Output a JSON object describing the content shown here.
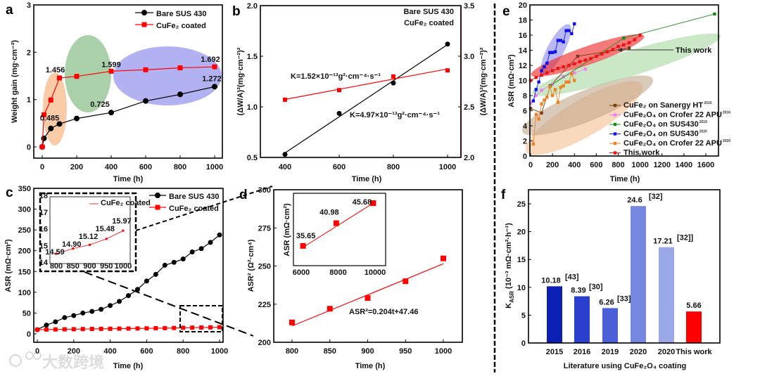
{
  "chart_data": [
    {
      "panel": "a",
      "type": "line",
      "xlabel": "Time (h)",
      "ylabel": "Weight gain (mg·cm⁻²)",
      "xlim": [
        0,
        1000
      ],
      "ylim": [
        0,
        3
      ],
      "xticks": [
        "0",
        "200",
        "400",
        "600",
        "800",
        "1000"
      ],
      "yticks": [
        "0",
        "1",
        "2",
        "3"
      ],
      "legend": "top-right",
      "series": [
        {
          "name": "Bare SUS 430",
          "color": "#000000",
          "marker": "circle",
          "x": [
            0,
            10,
            50,
            100,
            200,
            400,
            600,
            800,
            1000
          ],
          "y": [
            0,
            0.18,
            0.39,
            0.485,
            0.6,
            0.725,
            0.97,
            1.11,
            1.272
          ]
        },
        {
          "name": "CuFe₂ coated",
          "color": "#ff0000",
          "marker": "square",
          "x": [
            0,
            10,
            50,
            100,
            200,
            400,
            600,
            800,
            1000
          ],
          "y": [
            0,
            0.68,
            0.99,
            1.456,
            1.49,
            1.599,
            1.63,
            1.67,
            1.692
          ]
        }
      ],
      "annotations": [
        {
          "text": "0.485",
          "x": 100,
          "y": 0.485,
          "color": "#333333"
        },
        {
          "text": "0.725",
          "x": 400,
          "y": 0.725,
          "color": "#333333"
        },
        {
          "text": "1.272",
          "x": 1000,
          "y": 1.272,
          "color": "#222266"
        },
        {
          "text": "1.456",
          "x": 100,
          "y": 1.456,
          "color": "#ff0000"
        },
        {
          "text": "1.599",
          "x": 400,
          "y": 1.599,
          "color": "#ff0000"
        },
        {
          "text": "1.692",
          "x": 1000,
          "y": 1.692,
          "color": "#ff0000"
        }
      ]
    },
    {
      "panel": "b",
      "type": "scatter",
      "xlabel": "Time (h)",
      "ylabel": "(ΔW/A)²(mg·cm⁻²)²",
      "ylabel_right": "(ΔW/A)²(mg·cm⁻²)²",
      "xlim": [
        400,
        1000
      ],
      "ylim": [
        0.5,
        2.0
      ],
      "ylim_right": [
        2.0,
        3.5
      ],
      "xticks": [
        "400",
        "600",
        "800",
        "1000"
      ],
      "yticks": [
        "0.5",
        "1.0",
        "1.5",
        "2.0"
      ],
      "yticks_right": [
        "2.0",
        "2.5",
        "3.0",
        "3.5"
      ],
      "series": [
        {
          "name": "Bare SUS 430",
          "color": "#000000",
          "axis": "left",
          "x": [
            400,
            600,
            800,
            1000
          ],
          "y": [
            0.53,
            0.935,
            1.235,
            1.62
          ],
          "fit_label": "K=4.97×10⁻¹³g²·cm⁻⁴·s⁻¹"
        },
        {
          "name": "CuFe₂ coated",
          "color": "#ff0000",
          "axis": "right",
          "x": [
            400,
            600,
            800,
            1000
          ],
          "y": [
            2.57,
            2.665,
            2.8,
            2.86
          ],
          "fit_label": "K=1.52×10⁻¹³g²·cm⁻⁴·s⁻¹"
        }
      ]
    },
    {
      "panel": "c",
      "type": "line",
      "xlabel": "Time (h)",
      "ylabel": "ASR (mΩ·cm²)",
      "xlim": [
        0,
        1000
      ],
      "ylim": [
        0,
        350
      ],
      "xticks": [
        "0",
        "200",
        "400",
        "600",
        "800",
        "1000"
      ],
      "yticks": [
        "0",
        "50",
        "100",
        "150",
        "200",
        "250",
        "300",
        "350"
      ],
      "legend": "top-right",
      "series": [
        {
          "name": "Bare SUS 430",
          "color": "#000000",
          "marker": "circle",
          "x": [
            0,
            50,
            100,
            150,
            200,
            250,
            300,
            350,
            400,
            450,
            500,
            550,
            600,
            650,
            700,
            750,
            800,
            850,
            900,
            950,
            1000
          ],
          "y": [
            10,
            21,
            29,
            39,
            44,
            50,
            54,
            59,
            68,
            78,
            92,
            107,
            127,
            143,
            165,
            172,
            180,
            197,
            205,
            220,
            238
          ]
        },
        {
          "name": "CuFe₂ coated",
          "color": "#ff0000",
          "marker": "square",
          "x": [
            0,
            50,
            100,
            150,
            200,
            250,
            300,
            350,
            400,
            450,
            500,
            550,
            600,
            650,
            700,
            750,
            800,
            850,
            900,
            950,
            1000
          ],
          "y": [
            10,
            10.3,
            10.6,
            10.9,
            11.2,
            11.5,
            11.8,
            12.0,
            12.2,
            12.5,
            12.7,
            12.9,
            13.2,
            13.5,
            13.8,
            14.1,
            14.59,
            14.9,
            15.12,
            15.48,
            15.97
          ]
        }
      ],
      "inset": {
        "legend": "CuFe₂ coated",
        "xlim": [
          800,
          1000
        ],
        "ylim": [
          14,
          18
        ],
        "xticks": [
          "800",
          "850",
          "900",
          "950",
          "1000"
        ],
        "yticks": [
          "14",
          "15",
          "16",
          "17",
          "18"
        ],
        "x": [
          800,
          850,
          900,
          950,
          1000
        ],
        "y": [
          14.59,
          14.9,
          15.12,
          15.48,
          15.97
        ],
        "labels": [
          "14.59",
          "14.90",
          "15.12",
          "15.48",
          "15.97"
        ]
      }
    },
    {
      "panel": "d",
      "type": "scatter",
      "xlabel": "Time (h)",
      "ylabel": "ASR² (Ω²·cm⁴)",
      "xlim": [
        800,
        1000
      ],
      "ylim": [
        200,
        300
      ],
      "xticks": [
        "800",
        "850",
        "900",
        "950",
        "1000"
      ],
      "yticks": [
        "200",
        "225",
        "250",
        "275",
        "300"
      ],
      "x": [
        800,
        850,
        900,
        950,
        1000
      ],
      "y": [
        213,
        222,
        229,
        240,
        255
      ],
      "fit": {
        "slope": 0.204,
        "intercept": 47.46,
        "label": "ASR²=0.204t+47.46"
      },
      "inset": {
        "ylabel": "ASR (mΩ·cm²)",
        "xlim": [
          6000,
          10000
        ],
        "ylim": [
          32,
          48
        ],
        "xticks": [
          "6000",
          "8000",
          "10000"
        ],
        "x": [
          6100,
          7900,
          9900
        ],
        "y": [
          35.65,
          40.98,
          45.68
        ],
        "labels": [
          "35.65",
          "40.98",
          "45.68"
        ]
      }
    },
    {
      "panel": "e",
      "type": "line",
      "xlabel": "Time (h)",
      "ylabel": "ASR (mΩ·cm²)",
      "xlim": [
        0,
        1700
      ],
      "ylim": [
        0,
        20
      ],
      "xticks": [
        "0",
        "200",
        "400",
        "600",
        "800",
        "1000",
        "1200",
        "1400",
        "1600"
      ],
      "yticks": [
        "0",
        "2",
        "4",
        "6",
        "8",
        "10",
        "12",
        "14",
        "16",
        "18",
        "20"
      ],
      "legend": "bottom-right",
      "annotation": "This work",
      "series": [
        {
          "name": "CuFe₂ on Sanergy HT",
          "ref": "2015",
          "color": "#7a3b12",
          "x": [
            0,
            100,
            180,
            430,
            900
          ],
          "y": [
            6.3,
            5.7,
            9.3,
            13.2,
            14.3
          ]
        },
        {
          "name": "CuFe₂O₄ on Crofer 22 APU",
          "ref": "2016",
          "color": "#ee82ee",
          "x": [
            0,
            50,
            100,
            200,
            300,
            400,
            500
          ],
          "y": [
            7,
            8,
            8.7,
            9.5,
            10.5,
            11,
            11.5
          ]
        },
        {
          "name": "CuFe₂O₄ on SUS430",
          "ref": "2019",
          "color": "#1a8a1a",
          "x": [
            180,
            850,
            1680
          ],
          "y": [
            9.3,
            15.6,
            18.8
          ]
        },
        {
          "name": "CuFe₂O₄ on SUS430",
          "ref": "2020",
          "color": "#1010ee",
          "x": [
            25,
            50,
            75,
            100,
            125,
            150,
            175,
            200,
            225,
            250,
            275,
            300,
            325,
            350,
            375,
            400
          ],
          "y": [
            7.3,
            8.8,
            9.8,
            11.3,
            11.8,
            12.3,
            13.7,
            13.7,
            13.8,
            15.3,
            15.3,
            15.1,
            16.6,
            16.6,
            16.2,
            17.5
          ]
        },
        {
          "name": "CuFe₂O₄ on Crofer 22 APU",
          "ref": "2020",
          "color": "#f08020",
          "x": [
            25,
            50,
            75,
            100,
            125,
            150,
            175,
            200,
            225,
            250,
            275,
            300,
            325,
            350,
            375,
            400
          ],
          "y": [
            1.6,
            5.5,
            4.9,
            6.9,
            7.4,
            7.8,
            9.2,
            8,
            8.8,
            7.1,
            9.1,
            9.3,
            9.8,
            9.8,
            10.9,
            10
          ]
        },
        {
          "name": "This work",
          "ref": "",
          "color": "#ee1111",
          "x": [
            0,
            50,
            100,
            150,
            200,
            250,
            300,
            350,
            400,
            450,
            500,
            550,
            600,
            650,
            700,
            750,
            800,
            850,
            900,
            950,
            1000
          ],
          "y": [
            10,
            10.4,
            10.7,
            11,
            11.3,
            11.6,
            11.8,
            12,
            12.2,
            12.5,
            12.7,
            12.9,
            13.2,
            13.5,
            13.8,
            14.1,
            14.5,
            14.7,
            15,
            15.4,
            16
          ]
        }
      ]
    },
    {
      "panel": "f",
      "type": "bar",
      "xlabel": "Literature using CuFe₂O₄ coating",
      "ylabel": "K",
      "ylabel_sub": "ASR",
      "ylabel_rest": " (10⁻³ mΩ·cm²·h⁻¹)",
      "ylim": [
        0,
        27.5
      ],
      "yticks": [
        "0",
        "5",
        "10",
        "15",
        "20",
        "25"
      ],
      "categories": [
        "2015",
        "2016",
        "2019",
        "2020",
        "2020",
        "This work"
      ],
      "values": [
        10.18,
        8.39,
        6.26,
        24.6,
        17.21,
        5.66
      ],
      "labels": [
        "10.18",
        "8.39",
        "6.26",
        "24.6",
        "17.21",
        "5.66"
      ],
      "refs": [
        "[43]",
        "[30]",
        "[33]",
        "[32]",
        "[32]]",
        ""
      ],
      "colors": [
        "#0b1fb3",
        "#2b3fcf",
        "#4b60d8",
        "#7687e0",
        "#9ba8e8",
        "#ff0000"
      ]
    }
  ],
  "watermark": "大数跨境"
}
